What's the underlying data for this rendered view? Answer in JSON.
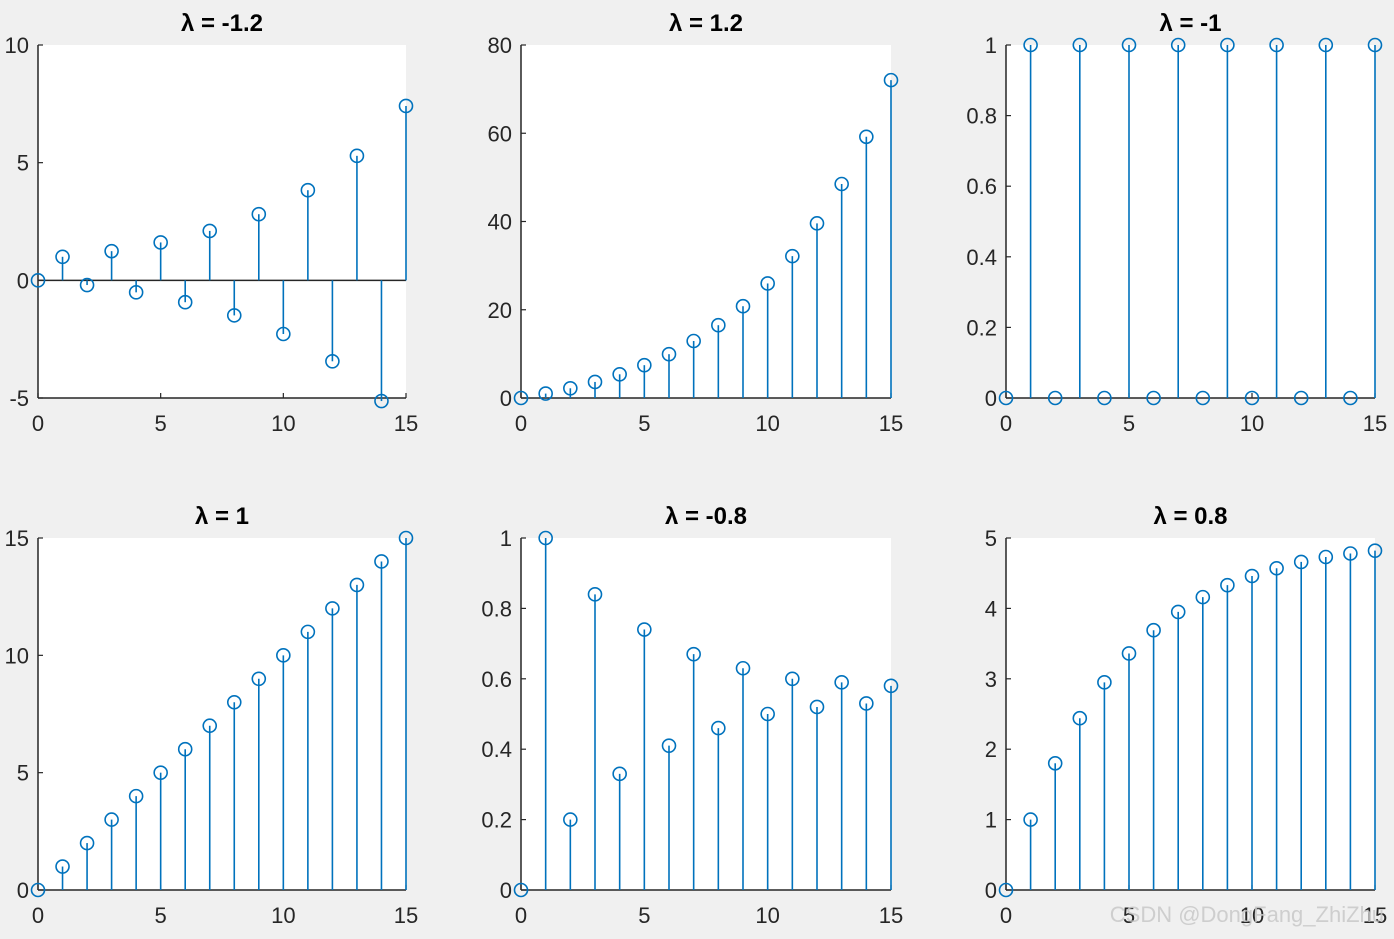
{
  "colors": {
    "stem": "#0072bd",
    "axis": "#262626",
    "plot_bg": "#ffffff",
    "figure_bg": "#f0f0f0"
  },
  "watermark": "CSDN @DongFang_ZhiZhu",
  "chart_data": [
    {
      "type": "stem",
      "title": "λ = -1.2",
      "x": [
        0,
        1,
        2,
        3,
        4,
        5,
        6,
        7,
        8,
        9,
        10,
        11,
        12,
        13,
        14,
        15
      ],
      "y": [
        0,
        1,
        -0.2,
        1.24,
        -0.51,
        1.61,
        -0.93,
        2.1,
        -1.49,
        2.81,
        -2.28,
        3.83,
        -3.44,
        5.29,
        -5.13,
        7.41
      ],
      "xlim": [
        0,
        15
      ],
      "ylim": [
        -5,
        10
      ],
      "xticks": [
        0,
        5,
        10,
        15
      ],
      "yticks": [
        -5,
        0,
        5,
        10
      ],
      "xtick_labels": [
        "0",
        "5",
        "10",
        "15"
      ],
      "ytick_labels": [
        "-5",
        "0",
        "5",
        "10"
      ]
    },
    {
      "type": "stem",
      "title": "λ = 1.2",
      "x": [
        0,
        1,
        2,
        3,
        4,
        5,
        6,
        7,
        8,
        9,
        10,
        11,
        12,
        13,
        14,
        15
      ],
      "y": [
        0,
        1,
        2.2,
        3.64,
        5.37,
        7.44,
        9.93,
        12.92,
        16.5,
        20.8,
        25.96,
        32.15,
        39.58,
        48.5,
        59.2,
        72.04
      ],
      "xlim": [
        0,
        15
      ],
      "ylim": [
        0,
        80
      ],
      "xticks": [
        0,
        5,
        10,
        15
      ],
      "yticks": [
        0,
        20,
        40,
        60,
        80
      ],
      "xtick_labels": [
        "0",
        "5",
        "10",
        "15"
      ],
      "ytick_labels": [
        "0",
        "20",
        "40",
        "60",
        "80"
      ]
    },
    {
      "type": "stem",
      "title": "λ = -1",
      "x": [
        0,
        1,
        2,
        3,
        4,
        5,
        6,
        7,
        8,
        9,
        10,
        11,
        12,
        13,
        14,
        15
      ],
      "y": [
        0,
        1,
        0,
        1,
        0,
        1,
        0,
        1,
        0,
        1,
        0,
        1,
        0,
        1,
        0,
        1
      ],
      "xlim": [
        0,
        15
      ],
      "ylim": [
        0,
        1
      ],
      "xticks": [
        0,
        5,
        10,
        15
      ],
      "yticks": [
        0,
        0.2,
        0.4,
        0.6,
        0.8,
        1
      ],
      "xtick_labels": [
        "0",
        "5",
        "10",
        "15"
      ],
      "ytick_labels": [
        "0",
        "0.2",
        "0.4",
        "0.6",
        "0.8",
        "1"
      ]
    },
    {
      "type": "stem",
      "title": "λ = 1",
      "x": [
        0,
        1,
        2,
        3,
        4,
        5,
        6,
        7,
        8,
        9,
        10,
        11,
        12,
        13,
        14,
        15
      ],
      "y": [
        0,
        1,
        2,
        3,
        4,
        5,
        6,
        7,
        8,
        9,
        10,
        11,
        12,
        13,
        14,
        15
      ],
      "xlim": [
        0,
        15
      ],
      "ylim": [
        0,
        15
      ],
      "xticks": [
        0,
        5,
        10,
        15
      ],
      "yticks": [
        0,
        5,
        10,
        15
      ],
      "xtick_labels": [
        "0",
        "5",
        "10",
        "15"
      ],
      "ytick_labels": [
        "0",
        "5",
        "10",
        "15"
      ]
    },
    {
      "type": "stem",
      "title": "λ = -0.8",
      "x": [
        0,
        1,
        2,
        3,
        4,
        5,
        6,
        7,
        8,
        9,
        10,
        11,
        12,
        13,
        14,
        15
      ],
      "y": [
        0,
        1,
        0.2,
        0.84,
        0.33,
        0.74,
        0.41,
        0.67,
        0.46,
        0.63,
        0.5,
        0.6,
        0.52,
        0.59,
        0.53,
        0.58
      ],
      "xlim": [
        0,
        15
      ],
      "ylim": [
        0,
        1
      ],
      "xticks": [
        0,
        5,
        10,
        15
      ],
      "yticks": [
        0,
        0.2,
        0.4,
        0.6,
        0.8,
        1
      ],
      "xtick_labels": [
        "0",
        "5",
        "10",
        "15"
      ],
      "ytick_labels": [
        "0",
        "0.2",
        "0.4",
        "0.6",
        "0.8",
        "1"
      ]
    },
    {
      "type": "stem",
      "title": "λ = 0.8",
      "x": [
        0,
        1,
        2,
        3,
        4,
        5,
        6,
        7,
        8,
        9,
        10,
        11,
        12,
        13,
        14,
        15
      ],
      "y": [
        0,
        1,
        1.8,
        2.44,
        2.95,
        3.36,
        3.69,
        3.95,
        4.16,
        4.33,
        4.46,
        4.57,
        4.66,
        4.73,
        4.78,
        4.82
      ],
      "xlim": [
        0,
        15
      ],
      "ylim": [
        0,
        5
      ],
      "xticks": [
        0,
        5,
        10,
        15
      ],
      "yticks": [
        0,
        1,
        2,
        3,
        4,
        5
      ],
      "xtick_labels": [
        "0",
        "5",
        "10",
        "15"
      ],
      "ytick_labels": [
        "0",
        "1",
        "2",
        "3",
        "4",
        "5"
      ]
    }
  ]
}
